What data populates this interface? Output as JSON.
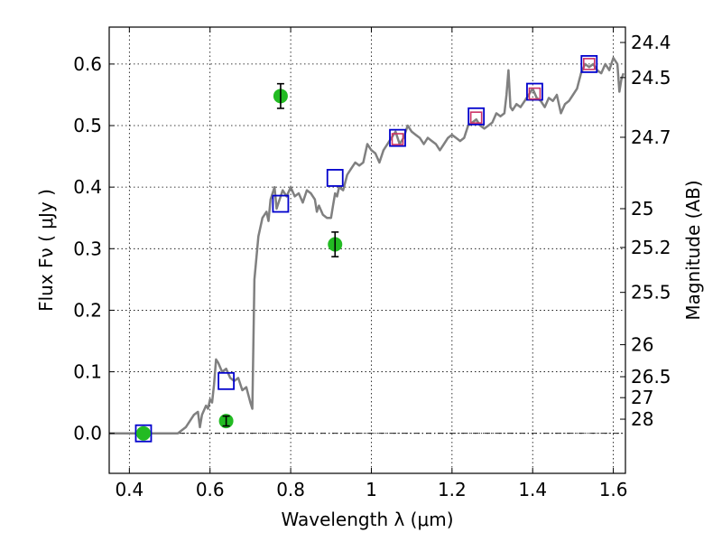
{
  "chart_data": {
    "type": "line",
    "xlabel": "Wavelength  λ (μm)",
    "ylabel": "Flux  Fν  ( μJy )",
    "ylabel_right": "Magnitude (AB)",
    "xlim": [
      0.35,
      1.63
    ],
    "ylim": [
      -0.065,
      0.66
    ],
    "grid": true,
    "x_ticks": [
      0.4,
      0.6,
      0.8,
      1.0,
      1.2,
      1.4,
      1.6
    ],
    "x_tick_labels": [
      "0.4",
      "0.6",
      "0.8",
      "1",
      "1.2",
      "1.4",
      "1.6"
    ],
    "y_ticks": [
      0.0,
      0.1,
      0.2,
      0.3,
      0.4,
      0.5,
      0.6
    ],
    "y_tick_labels": [
      "0.0",
      "0.1",
      "0.2",
      "0.3",
      "0.4",
      "0.5",
      "0.6"
    ],
    "right_ticks": [
      {
        "flux": 0.635,
        "label": "24.4"
      },
      {
        "flux": 0.578,
        "label": "24.5"
      },
      {
        "flux": 0.481,
        "label": "24.7"
      },
      {
        "flux": 0.365,
        "label": "25"
      },
      {
        "flux": 0.302,
        "label": "25.2"
      },
      {
        "flux": 0.229,
        "label": "25.5"
      },
      {
        "flux": 0.144,
        "label": "26"
      },
      {
        "flux": 0.092,
        "label": "26.5"
      },
      {
        "flux": 0.058,
        "label": "27"
      },
      {
        "flux": 0.023,
        "label": "28"
      }
    ],
    "series": [
      {
        "type": "line",
        "color": "#808080",
        "points": [
          [
            0.35,
            0.0
          ],
          [
            0.43,
            0.0
          ],
          [
            0.52,
            0.0
          ],
          [
            0.54,
            0.01
          ],
          [
            0.56,
            0.03
          ],
          [
            0.57,
            0.035
          ],
          [
            0.575,
            0.01
          ],
          [
            0.58,
            0.03
          ],
          [
            0.59,
            0.045
          ],
          [
            0.595,
            0.04
          ],
          [
            0.6,
            0.055
          ],
          [
            0.605,
            0.05
          ],
          [
            0.61,
            0.08
          ],
          [
            0.615,
            0.12
          ],
          [
            0.62,
            0.115
          ],
          [
            0.63,
            0.1
          ],
          [
            0.64,
            0.105
          ],
          [
            0.65,
            0.09
          ],
          [
            0.66,
            0.085
          ],
          [
            0.67,
            0.09
          ],
          [
            0.68,
            0.07
          ],
          [
            0.69,
            0.075
          ],
          [
            0.7,
            0.05
          ],
          [
            0.705,
            0.04
          ],
          [
            0.71,
            0.25
          ],
          [
            0.72,
            0.32
          ],
          [
            0.73,
            0.35
          ],
          [
            0.74,
            0.36
          ],
          [
            0.745,
            0.345
          ],
          [
            0.75,
            0.38
          ],
          [
            0.755,
            0.39
          ],
          [
            0.76,
            0.4
          ],
          [
            0.765,
            0.365
          ],
          [
            0.77,
            0.375
          ],
          [
            0.78,
            0.395
          ],
          [
            0.79,
            0.385
          ],
          [
            0.8,
            0.4
          ],
          [
            0.81,
            0.385
          ],
          [
            0.82,
            0.39
          ],
          [
            0.83,
            0.375
          ],
          [
            0.84,
            0.395
          ],
          [
            0.85,
            0.39
          ],
          [
            0.86,
            0.38
          ],
          [
            0.865,
            0.36
          ],
          [
            0.87,
            0.37
          ],
          [
            0.88,
            0.355
          ],
          [
            0.89,
            0.35
          ],
          [
            0.9,
            0.35
          ],
          [
            0.905,
            0.37
          ],
          [
            0.91,
            0.39
          ],
          [
            0.915,
            0.385
          ],
          [
            0.92,
            0.4
          ],
          [
            0.93,
            0.395
          ],
          [
            0.94,
            0.42
          ],
          [
            0.95,
            0.43
          ],
          [
            0.96,
            0.44
          ],
          [
            0.97,
            0.435
          ],
          [
            0.98,
            0.44
          ],
          [
            0.99,
            0.47
          ],
          [
            1.0,
            0.46
          ],
          [
            1.01,
            0.455
          ],
          [
            1.02,
            0.44
          ],
          [
            1.03,
            0.46
          ],
          [
            1.04,
            0.47
          ],
          [
            1.05,
            0.48
          ],
          [
            1.06,
            0.49
          ],
          [
            1.07,
            0.47
          ],
          [
            1.08,
            0.48
          ],
          [
            1.09,
            0.5
          ],
          [
            1.1,
            0.49
          ],
          [
            1.11,
            0.485
          ],
          [
            1.12,
            0.48
          ],
          [
            1.13,
            0.47
          ],
          [
            1.14,
            0.48
          ],
          [
            1.15,
            0.475
          ],
          [
            1.16,
            0.47
          ],
          [
            1.17,
            0.46
          ],
          [
            1.18,
            0.47
          ],
          [
            1.19,
            0.48
          ],
          [
            1.2,
            0.485
          ],
          [
            1.21,
            0.48
          ],
          [
            1.22,
            0.475
          ],
          [
            1.23,
            0.48
          ],
          [
            1.24,
            0.5
          ],
          [
            1.25,
            0.505
          ],
          [
            1.26,
            0.51
          ],
          [
            1.27,
            0.5
          ],
          [
            1.28,
            0.495
          ],
          [
            1.29,
            0.5
          ],
          [
            1.3,
            0.505
          ],
          [
            1.31,
            0.52
          ],
          [
            1.32,
            0.515
          ],
          [
            1.33,
            0.52
          ],
          [
            1.335,
            0.55
          ],
          [
            1.34,
            0.59
          ],
          [
            1.345,
            0.53
          ],
          [
            1.35,
            0.525
          ],
          [
            1.36,
            0.535
          ],
          [
            1.37,
            0.53
          ],
          [
            1.38,
            0.54
          ],
          [
            1.39,
            0.55
          ],
          [
            1.4,
            0.56
          ],
          [
            1.41,
            0.545
          ],
          [
            1.42,
            0.54
          ],
          [
            1.43,
            0.53
          ],
          [
            1.44,
            0.545
          ],
          [
            1.45,
            0.54
          ],
          [
            1.46,
            0.55
          ],
          [
            1.47,
            0.52
          ],
          [
            1.48,
            0.535
          ],
          [
            1.49,
            0.54
          ],
          [
            1.5,
            0.55
          ],
          [
            1.51,
            0.56
          ],
          [
            1.52,
            0.585
          ],
          [
            1.53,
            0.6
          ],
          [
            1.54,
            0.595
          ],
          [
            1.55,
            0.6
          ],
          [
            1.56,
            0.59
          ],
          [
            1.57,
            0.585
          ],
          [
            1.58,
            0.6
          ],
          [
            1.59,
            0.59
          ],
          [
            1.6,
            0.61
          ],
          [
            1.61,
            0.6
          ],
          [
            1.615,
            0.555
          ],
          [
            1.62,
            0.575
          ],
          [
            1.625,
            0.585
          ]
        ]
      },
      {
        "type": "scatter",
        "marker": "square",
        "color": "#0000cc",
        "points": [
          [
            0.435,
            0.0
          ],
          [
            0.64,
            0.085
          ],
          [
            0.775,
            0.373
          ],
          [
            0.91,
            0.415
          ],
          [
            1.065,
            0.48
          ],
          [
            1.26,
            0.515
          ],
          [
            1.405,
            0.555
          ],
          [
            1.54,
            0.6
          ]
        ]
      },
      {
        "type": "scatter",
        "marker": "square",
        "color": "#cc3366",
        "points": [
          [
            1.065,
            0.478
          ],
          [
            1.26,
            0.513
          ],
          [
            1.405,
            0.552
          ],
          [
            1.54,
            0.6
          ]
        ]
      },
      {
        "type": "scatter",
        "marker": "circle",
        "color": "#22bb22",
        "points": [
          {
            "x": 0.435,
            "y": 0.0,
            "err": 0.0
          },
          {
            "x": 0.64,
            "y": 0.02,
            "err": 0.008
          },
          {
            "x": 0.775,
            "y": 0.548,
            "err": 0.02
          },
          {
            "x": 0.91,
            "y": 0.307,
            "err": 0.02
          }
        ]
      }
    ]
  }
}
